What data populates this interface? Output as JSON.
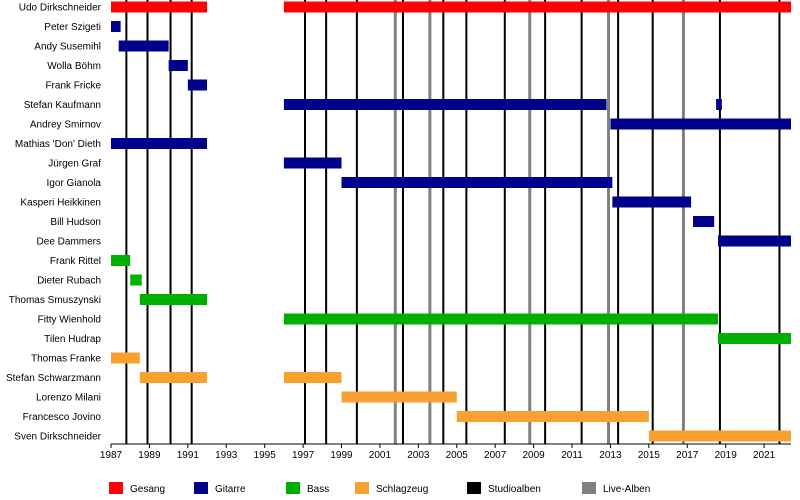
{
  "chart_data": {
    "type": "timeline",
    "title": "",
    "xlabel": "",
    "ylabel": "",
    "xlim": [
      1987,
      2022.4
    ],
    "x_ticks": [
      1987,
      1989,
      1991,
      1993,
      1995,
      1997,
      1999,
      2001,
      2003,
      2005,
      2007,
      2009,
      2011,
      2013,
      2015,
      2017,
      2019,
      2021
    ],
    "colors": {
      "Gesang": "#ff0000",
      "Gitarre": "#00008b",
      "Bass": "#00b000",
      "Schlagzeug": "#f8a030",
      "Studioalben": "#000000",
      "Live-Alben": "#808080"
    },
    "legend": [
      "Gesang",
      "Gitarre",
      "Bass",
      "Schlagzeug",
      "Studioalben",
      "Live-Alben"
    ],
    "members": [
      {
        "name": "Udo Dirkschneider",
        "role": "Gesang",
        "periods": [
          [
            1987,
            1992
          ],
          [
            1996,
            2022.4
          ]
        ]
      },
      {
        "name": "Peter Szigeti",
        "role": "Gitarre",
        "periods": [
          [
            1987,
            1987.5
          ]
        ]
      },
      {
        "name": "Andy Susemihl",
        "role": "Gitarre",
        "periods": [
          [
            1987.4,
            1990
          ]
        ]
      },
      {
        "name": "Wolla Böhm",
        "role": "Gitarre",
        "periods": [
          [
            1990,
            1991
          ]
        ]
      },
      {
        "name": "Frank Fricke",
        "role": "Gitarre",
        "periods": [
          [
            1991,
            1992
          ]
        ]
      },
      {
        "name": "Stefan Kaufmann",
        "role": "Gitarre",
        "periods": [
          [
            1996,
            2012.8
          ],
          [
            2018.5,
            2018.8
          ]
        ]
      },
      {
        "name": "Andrey Smirnov",
        "role": "Gitarre",
        "periods": [
          [
            2013,
            2022.4
          ]
        ]
      },
      {
        "name": "Mathias 'Don' Dieth",
        "role": "Gitarre",
        "periods": [
          [
            1987,
            1992
          ]
        ]
      },
      {
        "name": "Jürgen Graf",
        "role": "Gitarre",
        "periods": [
          [
            1996,
            1999
          ]
        ]
      },
      {
        "name": "Igor Gianola",
        "role": "Gitarre",
        "periods": [
          [
            1999,
            2013.1
          ]
        ]
      },
      {
        "name": "Kasperi Heikkinen",
        "role": "Gitarre",
        "periods": [
          [
            2013.1,
            2017.2
          ]
        ]
      },
      {
        "name": "Bill Hudson",
        "role": "Gitarre",
        "periods": [
          [
            2017.3,
            2018.4
          ]
        ]
      },
      {
        "name": "Dee Dammers",
        "role": "Gitarre",
        "periods": [
          [
            2018.6,
            2022.4
          ]
        ]
      },
      {
        "name": "Frank Rittel",
        "role": "Bass",
        "periods": [
          [
            1987,
            1988
          ]
        ]
      },
      {
        "name": "Dieter Rubach",
        "role": "Bass",
        "periods": [
          [
            1988,
            1988.6
          ]
        ]
      },
      {
        "name": "Thomas Smuszynski",
        "role": "Bass",
        "periods": [
          [
            1988.5,
            1992
          ]
        ]
      },
      {
        "name": "Fitty Wienhold",
        "role": "Bass",
        "periods": [
          [
            1996,
            2018.6
          ]
        ]
      },
      {
        "name": "Tilen Hudrap",
        "role": "Bass",
        "periods": [
          [
            2018.6,
            2022.4
          ]
        ]
      },
      {
        "name": "Thomas Franke",
        "role": "Schlagzeug",
        "periods": [
          [
            1987,
            1988.5
          ]
        ]
      },
      {
        "name": "Stefan Schwarzmann",
        "role": "Schlagzeug",
        "periods": [
          [
            1988.5,
            1992
          ],
          [
            1996,
            1999
          ]
        ]
      },
      {
        "name": "Lorenzo Milani",
        "role": "Schlagzeug",
        "periods": [
          [
            1999,
            2005
          ]
        ]
      },
      {
        "name": "Francesco Jovino",
        "role": "Schlagzeug",
        "periods": [
          [
            2005,
            2015
          ]
        ]
      },
      {
        "name": "Sven Dirkschneider",
        "role": "Schlagzeug",
        "periods": [
          [
            2015,
            2022.4
          ]
        ]
      }
    ],
    "studio_albums": [
      1987.8,
      1988.9,
      1990.1,
      1991.2,
      1997.1,
      1998.2,
      1999.8,
      2002.2,
      2004.3,
      2005.5,
      2007.5,
      2009.6,
      2011.5,
      2013.4,
      2015.2,
      2018.7,
      2021.8
    ],
    "live_albums": [
      2001.8,
      2003.6,
      2008.8,
      2012.9,
      2016.8
    ]
  }
}
